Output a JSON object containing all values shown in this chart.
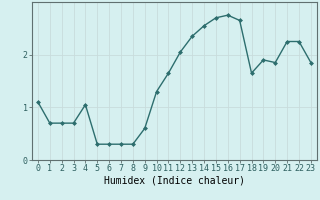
{
  "x": [
    0,
    1,
    2,
    3,
    4,
    5,
    6,
    7,
    8,
    9,
    10,
    11,
    12,
    13,
    14,
    15,
    16,
    17,
    18,
    19,
    20,
    21,
    22,
    23
  ],
  "y": [
    1.1,
    0.7,
    0.7,
    0.7,
    1.05,
    0.3,
    0.3,
    0.3,
    0.3,
    0.6,
    1.3,
    1.65,
    2.05,
    2.35,
    2.55,
    2.7,
    2.75,
    2.65,
    1.65,
    1.9,
    1.85,
    2.25,
    2.25,
    1.85
  ],
  "line_color": "#2d6e6e",
  "marker": "D",
  "markersize": 2.0,
  "linewidth": 1.0,
  "xlabel": "Humidex (Indice chaleur)",
  "xlim": [
    -0.5,
    23.5
  ],
  "ylim": [
    0,
    3.0
  ],
  "yticks": [
    0,
    1,
    2
  ],
  "xtick_labels": [
    "0",
    "1",
    "2",
    "3",
    "4",
    "5",
    "6",
    "7",
    "8",
    "9",
    "10",
    "11",
    "12",
    "13",
    "14",
    "15",
    "16",
    "17",
    "18",
    "19",
    "20",
    "21",
    "22",
    "23"
  ],
  "bg_color": "#d6f0f0",
  "grid_color": "#c8dcdc",
  "grid_linewidth": 0.6,
  "xlabel_fontsize": 7,
  "tick_fontsize": 6,
  "spine_color": "#607070"
}
